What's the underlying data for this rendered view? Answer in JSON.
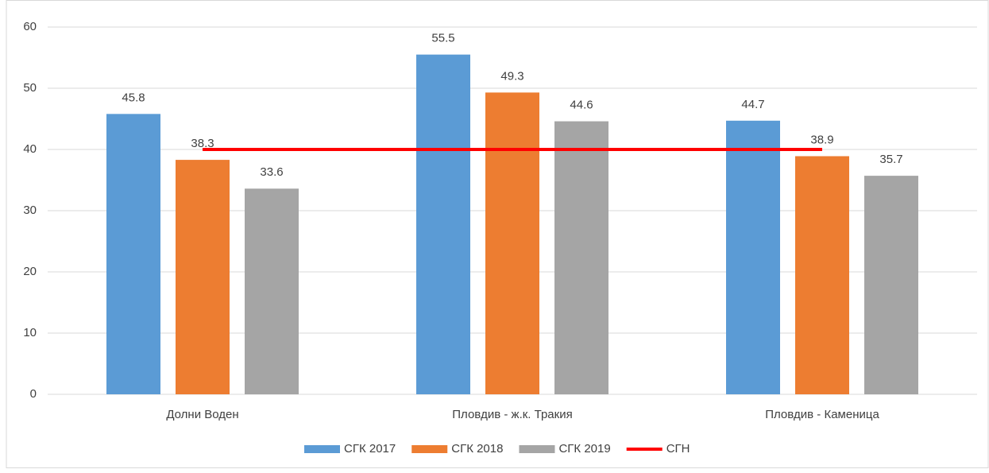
{
  "chart_data": {
    "type": "bar",
    "categories": [
      "Долни Воден",
      "Пловдив - ж.к. Тракия",
      "Пловдив - Каменица"
    ],
    "series": [
      {
        "name": "СГК 2017",
        "color": "#5b9bd5",
        "values": [
          45.8,
          55.5,
          44.7
        ]
      },
      {
        "name": "СГК 2018",
        "color": "#ed7d31",
        "values": [
          38.3,
          49.3,
          38.9
        ]
      },
      {
        "name": "СГК 2019",
        "color": "#a5a5a5",
        "values": [
          33.6,
          44.6,
          35.7
        ]
      },
      {
        "name": "СГН",
        "color": "#ff0000",
        "type": "line",
        "values": [
          40,
          40,
          40
        ]
      }
    ],
    "ylim": [
      0,
      60
    ],
    "yticks": [
      0,
      10,
      20,
      30,
      40,
      50,
      60
    ],
    "grid": true,
    "legend": "bottom"
  }
}
